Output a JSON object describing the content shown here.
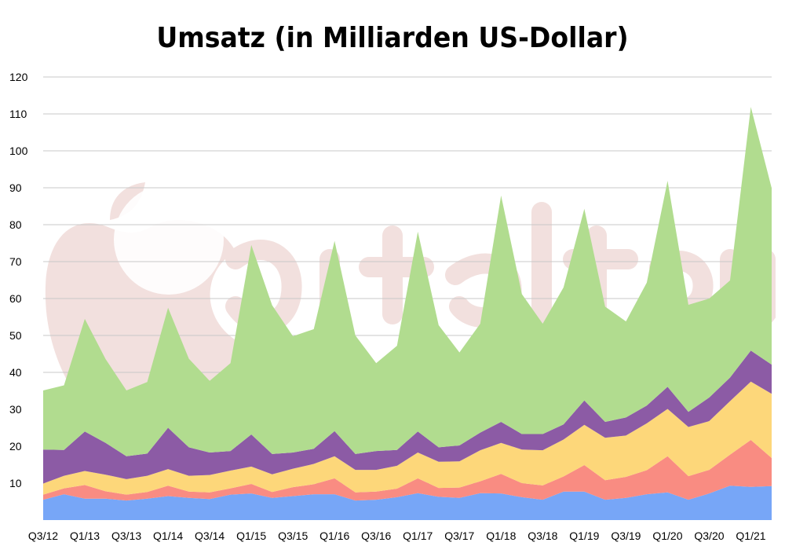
{
  "chart_data": {
    "type": "area",
    "stacked": true,
    "title": "Umsatz (in Milliarden US-Dollar)",
    "xlabel": "",
    "ylabel": "",
    "ylim": [
      0,
      120
    ],
    "y_ticks": [
      10,
      20,
      30,
      40,
      50,
      60,
      70,
      80,
      90,
      100,
      110,
      120
    ],
    "grid": true,
    "legend": "none",
    "x": [
      "Q3/12",
      "Q4/12",
      "Q1/13",
      "Q2/13",
      "Q3/13",
      "Q4/13",
      "Q1/14",
      "Q2/14",
      "Q3/14",
      "Q4/14",
      "Q1/15",
      "Q2/15",
      "Q3/15",
      "Q4/15",
      "Q1/16",
      "Q2/16",
      "Q3/16",
      "Q4/16",
      "Q1/17",
      "Q2/17",
      "Q3/17",
      "Q4/17",
      "Q1/18",
      "Q2/18",
      "Q3/18",
      "Q4/18",
      "Q1/19",
      "Q2/19",
      "Q3/19",
      "Q4/19",
      "Q1/20",
      "Q2/20",
      "Q3/20",
      "Q4/20",
      "Q1/21",
      "Q2/21"
    ],
    "x_tick_labels": [
      "Q3/12",
      "Q1/13",
      "Q3/13",
      "Q1/14",
      "Q3/14",
      "Q1/15",
      "Q3/15",
      "Q1/16",
      "Q3/16",
      "Q1/17",
      "Q3/17",
      "Q1/18",
      "Q3/18",
      "Q1/19",
      "Q3/19",
      "Q1/20",
      "Q3/20",
      "Q1/21"
    ],
    "series": [
      {
        "color": "#77a6f7",
        "values": [
          5.5,
          7,
          5.8,
          5.8,
          5.3,
          5.8,
          6.5,
          6,
          5.7,
          6.9,
          7.2,
          6,
          6.5,
          7,
          7,
          5.3,
          5.5,
          6.2,
          7.3,
          6.3,
          6,
          7.3,
          7.2,
          6.2,
          5.5,
          7.7,
          7.7,
          5.5,
          6,
          7,
          7.5,
          5.5,
          7.2,
          9.3,
          9,
          9.2
        ]
      },
      {
        "color": "#f98c82",
        "values": [
          1.4,
          1.6,
          3.7,
          2,
          1.6,
          1.8,
          2.8,
          1.7,
          1.8,
          1.7,
          2.6,
          1.6,
          2.4,
          2.7,
          4.3,
          2.2,
          2.2,
          2.3,
          4,
          2.4,
          2.8,
          3.2,
          5.3,
          3.8,
          3.9,
          4.1,
          7.2,
          5.3,
          5.7,
          6.5,
          9.8,
          6.4,
          6.4,
          8.4,
          12.7,
          7.6
        ]
      },
      {
        "color": "#fdd77a",
        "values": [
          3,
          3.4,
          3.8,
          4.5,
          4.2,
          4.4,
          4.5,
          4.3,
          4.7,
          4.8,
          4.7,
          4.8,
          5,
          5.5,
          6,
          6.1,
          5.9,
          6.2,
          7,
          7.1,
          7.1,
          8.4,
          8.4,
          9.1,
          9.5,
          10,
          10.9,
          11.5,
          11.2,
          12.7,
          12.8,
          13.3,
          13.2,
          14.5,
          15.8,
          17.4
        ]
      },
      {
        "color": "#8c5ba5",
        "values": [
          9.2,
          7,
          10.7,
          8.6,
          6.2,
          6,
          11.2,
          7.7,
          6.1,
          5.3,
          8.7,
          5.5,
          4.4,
          4.1,
          6.8,
          4.3,
          5.1,
          4.3,
          5.7,
          3.9,
          4.3,
          4.8,
          5.7,
          4.2,
          4.4,
          4.1,
          6.6,
          4.3,
          4.9,
          4.8,
          6,
          4.1,
          6.4,
          6.4,
          8.4,
          7.9
        ]
      },
      {
        "color": "#b1dc8f",
        "values": [
          16,
          17.5,
          30.5,
          22.7,
          17.8,
          19.4,
          32.5,
          24,
          19.4,
          23.8,
          51.3,
          40.3,
          31.5,
          32.4,
          51.5,
          32.1,
          23.8,
          28.2,
          54.1,
          33.1,
          25.2,
          29.5,
          61.3,
          37.9,
          29.9,
          37.1,
          51.9,
          31.2,
          26,
          33.3,
          55.8,
          29,
          26.8,
          26.3,
          66,
          47.8
        ]
      }
    ]
  }
}
